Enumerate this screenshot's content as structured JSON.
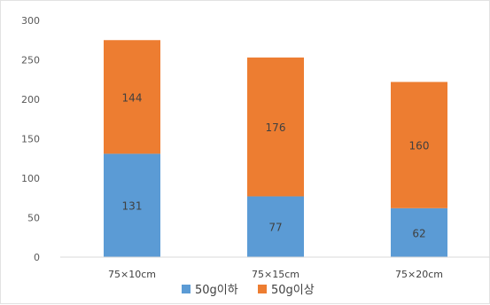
{
  "chart_data": {
    "type": "bar",
    "stacked": true,
    "categories": [
      "75×10cm",
      "75×15cm",
      "75×20cm"
    ],
    "series": [
      {
        "name": "50g이하",
        "values": [
          131,
          77,
          62
        ],
        "color": "#5b9bd5"
      },
      {
        "name": "50g이상",
        "values": [
          144,
          176,
          160
        ],
        "color": "#ed7d31"
      }
    ],
    "ylim": [
      0,
      300
    ],
    "yticks": [
      0,
      50,
      100,
      150,
      200,
      250,
      300
    ],
    "grid": false,
    "legend": "bottom",
    "title": "",
    "xlabel": "",
    "ylabel": ""
  }
}
